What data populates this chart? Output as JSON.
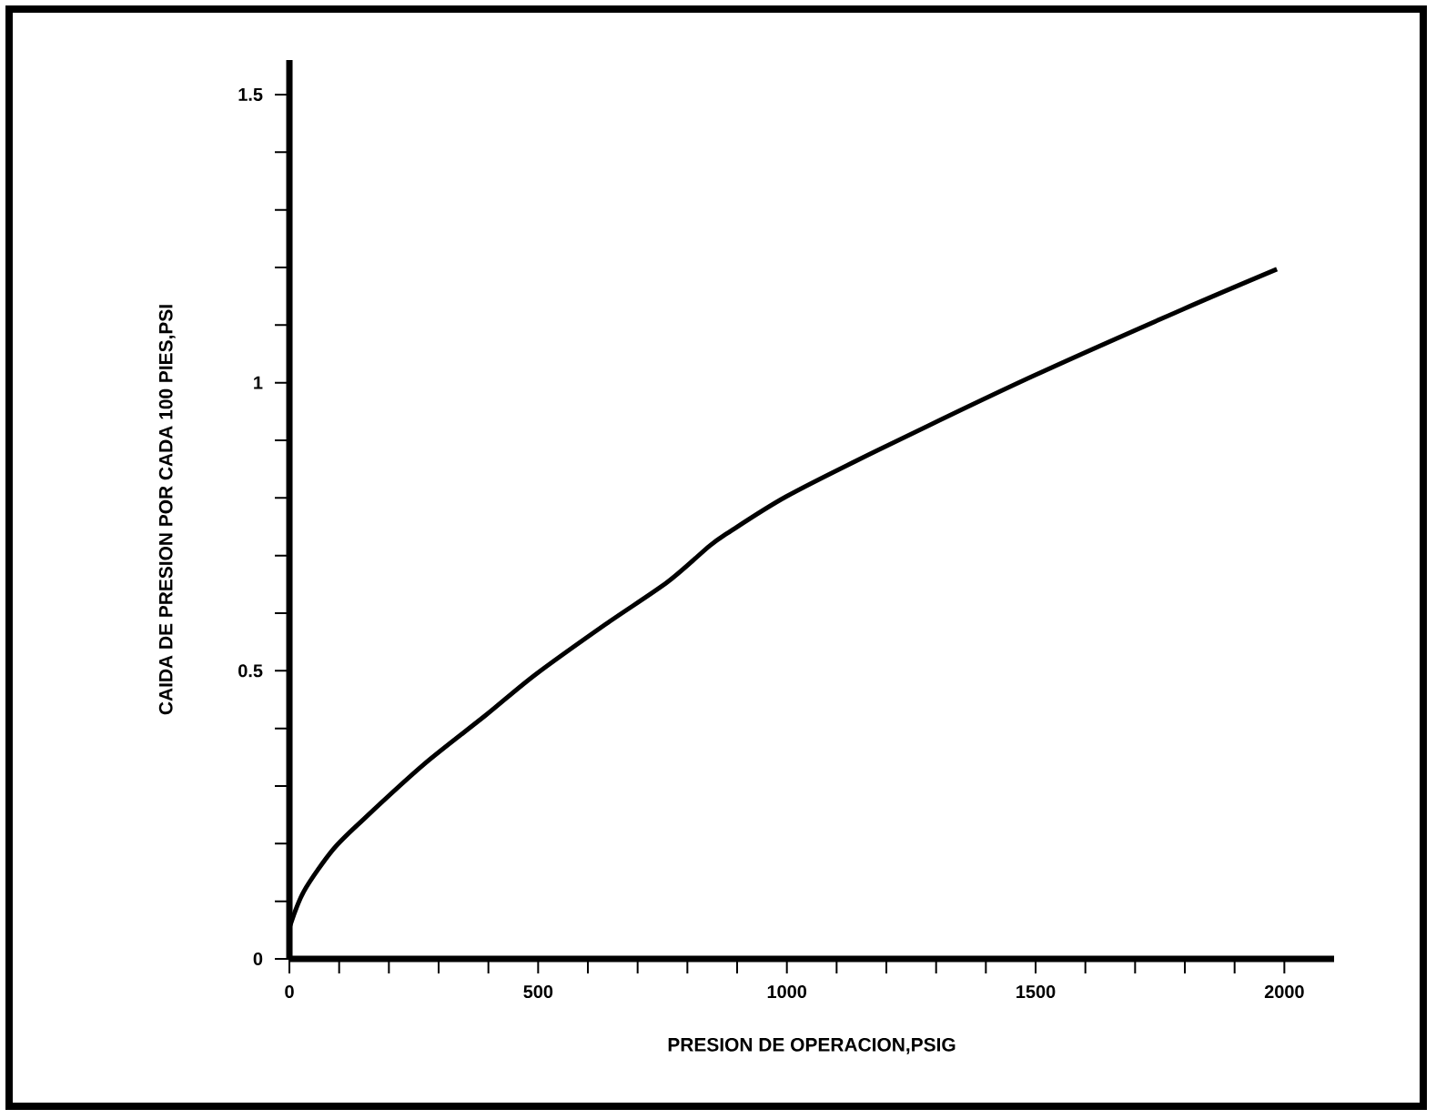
{
  "chart_data": {
    "type": "line",
    "xlabel": "PRESION DE OPERACION,PSIG",
    "ylabel": "CAIDA DE PRESION POR CADA 100 PIES,PSI",
    "x": [
      0,
      29,
      88,
      150,
      271,
      395,
      494,
      636,
      760,
      845,
      881,
      998,
      1186,
      1491,
      1795,
      1985
    ],
    "series": [
      {
        "color": "#000000",
        "values": [
          0.054,
          0.117,
          0.19,
          0.243,
          0.338,
          0.423,
          0.493,
          0.581,
          0.654,
          0.717,
          0.739,
          0.802,
          0.884,
          1.01,
          1.127,
          1.197
        ]
      }
    ],
    "xlim": [
      0,
      2100
    ],
    "ylim": [
      0,
      1.56
    ],
    "xticks": [
      0,
      {
        "value": 100,
        "label": null
      },
      {
        "value": 200,
        "label": null
      },
      {
        "value": 300,
        "label": null
      },
      {
        "value": 400,
        "label": null
      },
      500,
      {
        "value": 600,
        "label": null
      },
      {
        "value": 700,
        "label": null
      },
      {
        "value": 800,
        "label": null
      },
      {
        "value": 900,
        "label": null
      },
      1000,
      {
        "value": 1100,
        "label": null
      },
      {
        "value": 1200,
        "label": null
      },
      {
        "value": 1300,
        "label": null
      },
      {
        "value": 1400,
        "label": null
      },
      1500,
      {
        "value": 1600,
        "label": null
      },
      {
        "value": 1700,
        "label": null
      },
      {
        "value": 1800,
        "label": null
      },
      {
        "value": 1900,
        "label": null
      },
      2000
    ],
    "yticks": [
      0,
      {
        "value": 0.1,
        "label": null
      },
      {
        "value": 0.2,
        "label": null
      },
      {
        "value": 0.3,
        "label": null
      },
      {
        "value": 0.4,
        "label": null
      },
      0.5,
      {
        "value": 0.6,
        "label": null
      },
      {
        "value": 0.7,
        "label": null
      },
      {
        "value": 0.8,
        "label": null
      },
      {
        "value": 0.9,
        "label": null
      },
      1,
      {
        "value": 1.1,
        "label": null
      },
      {
        "value": 1.2,
        "label": null
      },
      {
        "value": 1.3,
        "label": null
      },
      {
        "value": 1.4,
        "label": null
      },
      1.5
    ],
    "grid": false,
    "marker": "none",
    "line_style": "solid"
  }
}
